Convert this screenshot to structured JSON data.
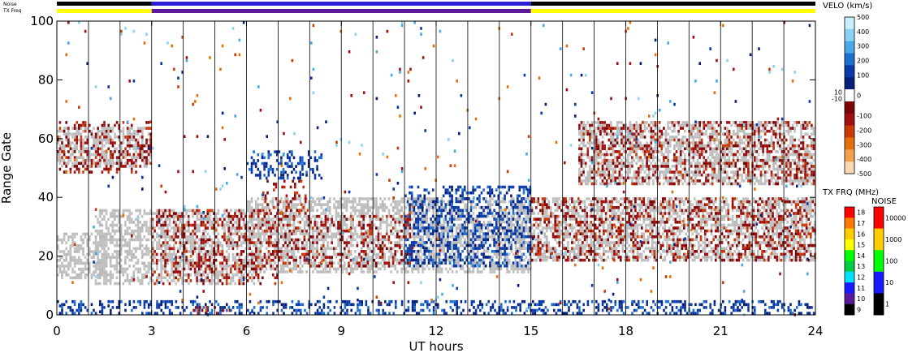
{
  "chart_data": {
    "type": "heatmap",
    "xlabel": "UT hours",
    "ylabel": "Range Gate",
    "xlim": [
      0,
      24
    ],
    "ylim": [
      0,
      100
    ],
    "x_ticks": [
      "0",
      "3",
      "6",
      "9",
      "12",
      "15",
      "18",
      "21",
      "24"
    ],
    "y_ticks": [
      "0",
      "20",
      "40",
      "60",
      "80",
      "100"
    ],
    "scan_boundaries_hours": [
      1,
      2,
      3,
      4,
      5,
      6,
      7,
      8,
      9,
      10,
      11,
      12,
      13,
      14,
      15,
      16,
      17,
      18,
      19,
      20,
      21,
      22,
      23
    ],
    "top_bars": {
      "noise_label": "Noise",
      "txfreq_label": "TX Freq",
      "noise_segments": [
        {
          "from": 0,
          "to": 3,
          "color": "#000000"
        },
        {
          "from": 3,
          "to": 15,
          "color": "#2a1fd6"
        },
        {
          "from": 15,
          "to": 24,
          "color": "#000000"
        }
      ],
      "txfreq_segments": [
        {
          "from": 0,
          "to": 3,
          "color": "#ffff00"
        },
        {
          "from": 3,
          "to": 15,
          "color": "#5a1a9a"
        },
        {
          "from": 15,
          "to": 24,
          "color": "#ffff00"
        }
      ]
    },
    "velocity_scale": {
      "title": "VELO (km/s)",
      "ticks": [
        "500",
        "400",
        "300",
        "200",
        "100",
        "10",
        "0",
        "-10",
        "-100",
        "-200",
        "-300",
        "-400",
        "-500"
      ],
      "colors": [
        "#c8f0ff",
        "#8ad2f5",
        "#4aa8e6",
        "#1f6fd0",
        "#0b3aa8",
        "#06207a",
        "#ffffff",
        "#7a0606",
        "#a01010",
        "#c83a0a",
        "#e4700a",
        "#f5a050",
        "#fcd8b0"
      ]
    },
    "txfreq_scale": {
      "title": "TX FRQ (MHz)",
      "ticks": [
        "18",
        "17",
        "16",
        "15",
        "14",
        "13",
        "12",
        "11",
        "10",
        "9"
      ],
      "colors": [
        "#ff0000",
        "#ff7a00",
        "#ffcc00",
        "#ffff00",
        "#00ff00",
        "#00cc44",
        "#00e0ff",
        "#1a1aff",
        "#5a1a9a",
        "#000000"
      ]
    },
    "noise_scale": {
      "title": "NOISE",
      "ticks": [
        "10000",
        "1000",
        "100",
        "10",
        "1"
      ],
      "colors": [
        "#ff0000",
        "#ffcc00",
        "#00ff00",
        "#1a1aff",
        "#000000"
      ]
    },
    "ground_scatter_color": "#c0c0c0",
    "regions": [
      {
        "x0": 0.0,
        "x1": 3.0,
        "y0": 50,
        "y1": 64,
        "kind": "gray"
      },
      {
        "x0": 0.0,
        "x1": 1.6,
        "y0": 12,
        "y1": 28,
        "kind": "gray"
      },
      {
        "x0": 1.2,
        "x1": 6.5,
        "y0": 10,
        "y1": 36,
        "kind": "gray"
      },
      {
        "x0": 6.0,
        "x1": 15.0,
        "y0": 14,
        "y1": 40,
        "kind": "gray"
      },
      {
        "x0": 15.0,
        "x1": 24.0,
        "y0": 18,
        "y1": 40,
        "kind": "gray"
      },
      {
        "x0": 16.5,
        "x1": 24.0,
        "y0": 44,
        "y1": 66,
        "kind": "gray"
      },
      {
        "x0": 0.0,
        "x1": 3.0,
        "y0": 48,
        "y1": 66,
        "kind": "red"
      },
      {
        "x0": 3.0,
        "x1": 7.0,
        "y0": 10,
        "y1": 36,
        "kind": "red"
      },
      {
        "x0": 7.0,
        "x1": 11.2,
        "y0": 16,
        "y1": 34,
        "kind": "red"
      },
      {
        "x0": 6.5,
        "x1": 8.0,
        "y0": 34,
        "y1": 46,
        "kind": "red"
      },
      {
        "x0": 15.0,
        "x1": 24.0,
        "y0": 18,
        "y1": 40,
        "kind": "red"
      },
      {
        "x0": 16.5,
        "x1": 24.0,
        "y0": 44,
        "y1": 66,
        "kind": "red"
      },
      {
        "x0": 6.0,
        "x1": 8.4,
        "y0": 46,
        "y1": 56,
        "kind": "blue"
      },
      {
        "x0": 11.0,
        "x1": 15.0,
        "y0": 16,
        "y1": 44,
        "kind": "blue"
      },
      {
        "x0": 0.0,
        "x1": 24.0,
        "y0": 0,
        "y1": 5,
        "kind": "blue"
      },
      {
        "x0": 4.3,
        "x1": 5.5,
        "y0": 0,
        "y1": 3,
        "kind": "red"
      },
      {
        "x0": 0.0,
        "x1": 24.0,
        "y0": 0,
        "y1": 100,
        "kind": "sparse"
      }
    ]
  }
}
